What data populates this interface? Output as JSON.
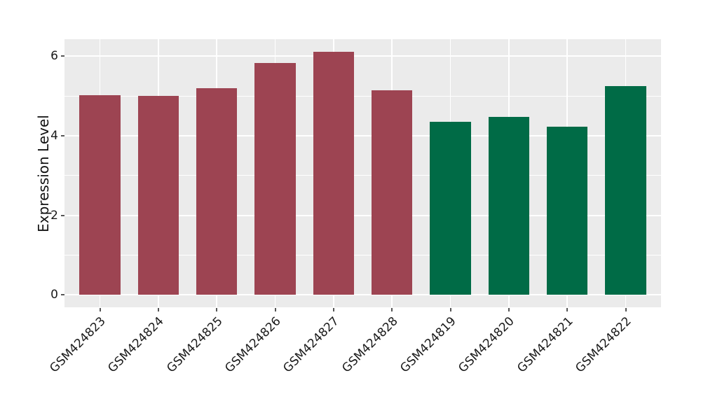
{
  "chart_data": {
    "type": "bar",
    "title": "",
    "xlabel": "",
    "ylabel": "Expression Level",
    "categories": [
      "GSM424823",
      "GSM424824",
      "GSM424825",
      "GSM424826",
      "GSM424827",
      "GSM424828",
      "GSM424819",
      "GSM424820",
      "GSM424821",
      "GSM424822"
    ],
    "values": [
      5.03,
      5.0,
      5.19,
      5.84,
      6.11,
      5.15,
      4.36,
      4.47,
      4.23,
      5.25
    ],
    "bar_colors": [
      "#9D4452",
      "#9D4452",
      "#9D4452",
      "#9D4452",
      "#9D4452",
      "#9D4452",
      "#006B46",
      "#006B46",
      "#006B46",
      "#006B46"
    ],
    "group_colors": {
      "left_group_red": "#9D4452",
      "right_group_green": "#006B46"
    },
    "yticks": [
      0,
      2,
      4,
      6
    ],
    "yticks_minor": [
      1,
      3,
      5
    ],
    "ytick_labels": [
      "0",
      "2",
      "4",
      "6"
    ],
    "ylim": [
      -0.31,
      6.43
    ],
    "bar_width_frac": 0.7,
    "grid": true,
    "legend": false,
    "panel_background": "#EBEBEB",
    "grid_color": "#FFFFFF",
    "tick_color": "#555555"
  }
}
